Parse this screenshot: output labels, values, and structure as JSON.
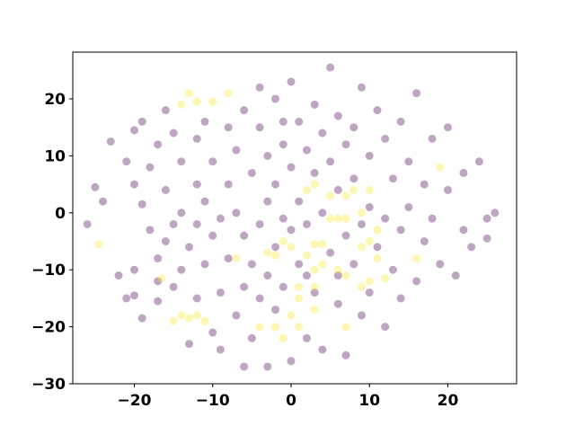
{
  "chart_data": {
    "type": "scatter",
    "xlim": [
      -27.85,
      28.77
    ],
    "ylim": [
      -30,
      28.2
    ],
    "xticks": [
      {
        "value": -20,
        "label": "−20"
      },
      {
        "value": -10,
        "label": "−10"
      },
      0,
      10,
      20
    ],
    "yticks": [
      {
        "value": -30,
        "label": "−30"
      },
      {
        "value": -20,
        "label": "−20"
      },
      {
        "value": -10,
        "label": "−10"
      },
      0,
      10,
      20
    ],
    "series": [
      {
        "color": "#440154",
        "x": [
          -26,
          -25,
          -24,
          -23,
          -22,
          -21,
          -21,
          -20,
          -20,
          -20,
          -20,
          -19,
          -19,
          -19,
          -18,
          -18,
          -17,
          -17,
          -17,
          -16,
          -16,
          -16,
          -15,
          -15,
          -15,
          -14,
          -14,
          -14,
          -13,
          -13,
          -12,
          -12,
          -12,
          -11,
          -11,
          -11,
          -10,
          -10,
          -10,
          -9,
          -9,
          -9,
          -8,
          -8,
          -8,
          -7,
          -7,
          -7,
          -6,
          -6,
          -6,
          -5,
          -5,
          -5,
          -4,
          -4,
          -4,
          -4,
          -3,
          -3,
          -3,
          -3,
          -2,
          -2,
          -2,
          -2,
          -1,
          -1,
          -1,
          0,
          0,
          0,
          0,
          1,
          1,
          1,
          2,
          2,
          2,
          3,
          3,
          3,
          4,
          4,
          4,
          5,
          5,
          5,
          6,
          6,
          6,
          7,
          7,
          7,
          8,
          8,
          8,
          9,
          9,
          9,
          10,
          10,
          10,
          11,
          11,
          12,
          12,
          12,
          13,
          13,
          14,
          14,
          14,
          15,
          15,
          16,
          16,
          17,
          17,
          18,
          18,
          19,
          20,
          20,
          21,
          22,
          22,
          23,
          24,
          25,
          25,
          26,
          -1,
          -6,
          2,
          6,
          -17,
          -12
        ],
        "values": [
          -2,
          4.5,
          2,
          12.5,
          -11,
          -15,
          9,
          -10,
          -14.5,
          5,
          14.5,
          -18.5,
          1.5,
          16,
          -3,
          8,
          -8,
          12,
          -15.5,
          18,
          -5,
          4,
          -2,
          14,
          -13,
          -10,
          9,
          0,
          -23,
          -6,
          5,
          13,
          -15,
          -9,
          2,
          16,
          -21,
          -4,
          9,
          -14,
          -1,
          -24,
          15,
          5,
          -8,
          -18,
          11,
          0,
          -13,
          18,
          -4,
          -22,
          7,
          -9,
          22,
          15,
          -2,
          -15,
          -27,
          10,
          2,
          -11,
          20,
          5,
          -6,
          -17,
          12,
          -1,
          -13,
          23,
          8,
          -3,
          -26,
          16,
          2,
          -9,
          11,
          -2,
          -22,
          19,
          7,
          -14,
          14,
          0,
          -24,
          25.5,
          9,
          -7,
          17,
          4,
          -16,
          12,
          -4,
          -25,
          15,
          6,
          -9,
          22,
          -2,
          -18,
          10,
          1,
          -14,
          18,
          -6,
          13,
          -1,
          -20,
          6,
          -10,
          16,
          -3,
          -15,
          9,
          1,
          -12,
          21,
          5,
          -5,
          13,
          -1,
          -9,
          15,
          4,
          -11,
          -3,
          7,
          -6,
          9,
          -4.5,
          -1,
          0,
          16,
          -27,
          -11,
          -11,
          -12,
          -2
        ]
      },
      {
        "color": "#fde725",
        "x": [
          -13,
          -14,
          -12,
          -10,
          -8,
          -24.5,
          -16.5,
          -14,
          -13,
          -12,
          -11,
          -15,
          -2,
          -4,
          0,
          1,
          1,
          3,
          3,
          1,
          -1,
          0,
          2,
          3,
          4,
          -3,
          -2,
          3,
          4,
          6,
          7,
          9,
          10,
          12,
          10,
          11,
          10,
          9,
          7,
          8,
          2,
          3,
          5,
          5,
          6,
          7,
          9,
          11,
          16,
          19,
          7,
          -7,
          -1
        ],
        "values": [
          21,
          19,
          19.5,
          19.5,
          21,
          -5.5,
          -11.5,
          -18,
          -18.5,
          -18,
          -19,
          -19,
          -20,
          -20,
          -18,
          -15,
          -20,
          -17,
          -13,
          -13,
          -5,
          -6,
          -7.5,
          -5.5,
          -5.5,
          -7,
          -7.5,
          -10,
          -9,
          -10,
          -11,
          -13,
          -12,
          -11.5,
          -5,
          -3,
          4,
          0,
          3,
          4,
          4,
          5,
          3,
          -1,
          -1,
          -1,
          -6,
          -8,
          -8,
          8,
          -20,
          -8,
          -22
        ]
      }
    ]
  }
}
